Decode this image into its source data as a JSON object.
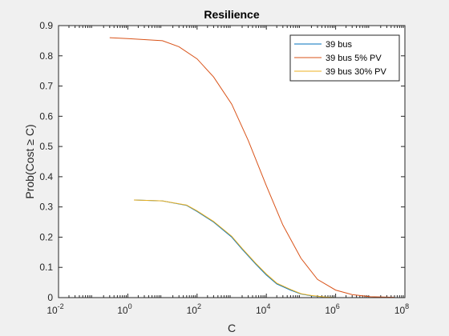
{
  "chart_data": {
    "type": "line",
    "title": "Resilience",
    "xlabel": "C",
    "ylabel": "Prob(Cost ≥ C)",
    "xscale": "log",
    "xlim": [
      0.01,
      100000000
    ],
    "ylim": [
      0,
      0.9
    ],
    "xticks": [
      0.01,
      1,
      100,
      10000,
      1000000,
      100000000
    ],
    "xtick_labels": [
      {
        "base": "10",
        "exp": "-2"
      },
      {
        "base": "10",
        "exp": "0"
      },
      {
        "base": "10",
        "exp": "2"
      },
      {
        "base": "10",
        "exp": "4"
      },
      {
        "base": "10",
        "exp": "6"
      },
      {
        "base": "10",
        "exp": "8"
      }
    ],
    "yticks": [
      0,
      0.1,
      0.2,
      0.3,
      0.4,
      0.5,
      0.6,
      0.7,
      0.8,
      0.9
    ],
    "ytick_labels": [
      "0",
      "0.1",
      "0.2",
      "0.3",
      "0.4",
      "0.5",
      "0.6",
      "0.7",
      "0.8",
      "0.9"
    ],
    "grid": false,
    "legend_position": "top-right",
    "series": [
      {
        "name": "39 bus",
        "color": "#0072bd",
        "x": [
          1.5,
          10,
          50,
          100,
          300,
          1000,
          2000,
          5000,
          10000,
          20000,
          50000,
          100000,
          200000,
          500000,
          1000000
        ],
        "y": [
          0.323,
          0.32,
          0.305,
          0.285,
          0.25,
          0.2,
          0.16,
          0.11,
          0.075,
          0.045,
          0.025,
          0.012,
          0.006,
          0.002,
          0.0
        ]
      },
      {
        "name": "39 bus 5% PV",
        "color": "#d95319",
        "x": [
          0.3,
          1,
          10,
          30,
          100,
          300,
          1000,
          3000,
          10000,
          30000,
          100000,
          300000,
          1000000,
          3000000,
          10000000,
          50000000
        ],
        "y": [
          0.86,
          0.857,
          0.85,
          0.83,
          0.79,
          0.73,
          0.64,
          0.52,
          0.37,
          0.24,
          0.13,
          0.06,
          0.025,
          0.01,
          0.003,
          0.001
        ]
      },
      {
        "name": "39 bus 30% PV",
        "color": "#edb120",
        "x": [
          1.5,
          10,
          50,
          100,
          300,
          1000,
          2000,
          5000,
          10000,
          20000,
          50000,
          100000,
          200000,
          500000,
          1000000
        ],
        "y": [
          0.323,
          0.32,
          0.306,
          0.287,
          0.252,
          0.203,
          0.163,
          0.113,
          0.078,
          0.048,
          0.027,
          0.013,
          0.007,
          0.002,
          0.0
        ]
      }
    ]
  }
}
